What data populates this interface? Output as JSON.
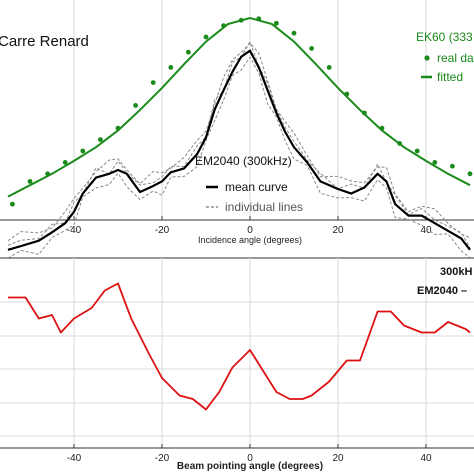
{
  "chart_data": [
    {
      "type": "line",
      "title": "Carre Renard",
      "xlabel": "Incidence angle (degrees)",
      "ylabel": "",
      "xlim": [
        -55,
        50
      ],
      "x_ticks": [
        "-40",
        "-20",
        "0",
        "20",
        "40"
      ],
      "grid": true,
      "annotations": {
        "em2040_label": "EM2040 (300kHz)",
        "mean_label": "mean curve",
        "individual_label": "individual lines",
        "ek60_label": "EK60 (333",
        "real_label": "real da",
        "fitted_label": "fitted"
      },
      "series": [
        {
          "name": "EK60 fitted",
          "color": "#1a8a1a",
          "x": [
            -55,
            -50,
            -45,
            -40,
            -35,
            -30,
            -25,
            -20,
            -15,
            -10,
            -5,
            0,
            5,
            10,
            15,
            20,
            25,
            30,
            35,
            40,
            45,
            50
          ],
          "values": [
            -26,
            -24.5,
            -23,
            -21.3,
            -19.5,
            -17.3,
            -14.6,
            -11.7,
            -8.6,
            -5.6,
            -3.3,
            -2.5,
            -3.3,
            -5.6,
            -8.6,
            -11.7,
            -14.6,
            -17.3,
            -19.5,
            -21.3,
            -23,
            -24.5
          ]
        },
        {
          "name": "EK60 real data",
          "color": "#1a8a1a",
          "x": [
            -54,
            -50,
            -46,
            -42,
            -38,
            -34,
            -30,
            -26,
            -22,
            -18,
            -14,
            -10,
            -6,
            -2,
            2,
            6,
            10,
            14,
            18,
            22,
            26,
            30,
            34,
            38,
            42,
            46,
            50
          ],
          "values": [
            -27,
            -24,
            -23,
            -21.5,
            -20,
            -18.5,
            -17,
            -14,
            -11,
            -9,
            -7,
            -5,
            -3.5,
            -2.8,
            -2.6,
            -3.2,
            -4.5,
            -6.5,
            -9,
            -12.5,
            -15,
            -17,
            -19,
            -20,
            -21.5,
            -22,
            -23
          ]
        },
        {
          "name": "EM2040 mean curve",
          "color": "#000000",
          "x": [
            -55,
            -52,
            -48,
            -45,
            -42,
            -40,
            -38,
            -35,
            -32,
            -30,
            -28,
            -25,
            -22,
            -20,
            -18,
            -15,
            -12,
            -10,
            -8,
            -6,
            -4,
            -2,
            0,
            2,
            4,
            6,
            8,
            10,
            13,
            16,
            20,
            23,
            26,
            29,
            31,
            33,
            36,
            39,
            42,
            45,
            48,
            50
          ],
          "values": [
            -33,
            -32.5,
            -31.8,
            -30.7,
            -29.5,
            -28,
            -25.6,
            -23.5,
            -23,
            -22.5,
            -23,
            -25.4,
            -24.6,
            -24,
            -22.8,
            -22.3,
            -20.4,
            -18.2,
            -14.5,
            -12,
            -9.6,
            -7.6,
            -6.8,
            -9,
            -12,
            -15,
            -17.5,
            -19.5,
            -21.5,
            -24,
            -25,
            -25.6,
            -24.8,
            -23,
            -24,
            -27,
            -28.5,
            -28.5,
            -29.5,
            -30.5,
            -31.5,
            -33
          ]
        }
      ]
    },
    {
      "type": "line",
      "title": "",
      "xlabel": "Beam pointing angle (degrees)",
      "ylabel": "",
      "xlim": [
        -55,
        50
      ],
      "x_ticks": [
        "-40",
        "-20",
        "0",
        "20",
        "40"
      ],
      "grid": true,
      "annotations": {
        "label_line1": "300kH",
        "label_line2": "EM2040 –"
      },
      "series": [
        {
          "name": "EM2040 300kHz",
          "color": "#dd1111",
          "x": [
            -55,
            -51,
            -48,
            -45,
            -43,
            -40,
            -36,
            -33,
            -30,
            -27,
            -23,
            -20,
            -16,
            -13,
            -10,
            -7,
            -4,
            0,
            3,
            6,
            9,
            12,
            14,
            18,
            22,
            25,
            29,
            32,
            35,
            39,
            42,
            45,
            49,
            50
          ],
          "values": [
            5.5,
            5.5,
            2.5,
            3,
            0.5,
            2.5,
            4,
            6.5,
            7.5,
            2.5,
            -2.5,
            -6,
            -8.5,
            -9,
            -10.5,
            -8,
            -4.5,
            -2,
            -5,
            -8,
            -9,
            -9,
            -8.5,
            -6.5,
            -3.5,
            -3.5,
            3.5,
            3.5,
            1.5,
            0.5,
            0.5,
            2,
            1,
            0.5
          ]
        }
      ]
    }
  ]
}
